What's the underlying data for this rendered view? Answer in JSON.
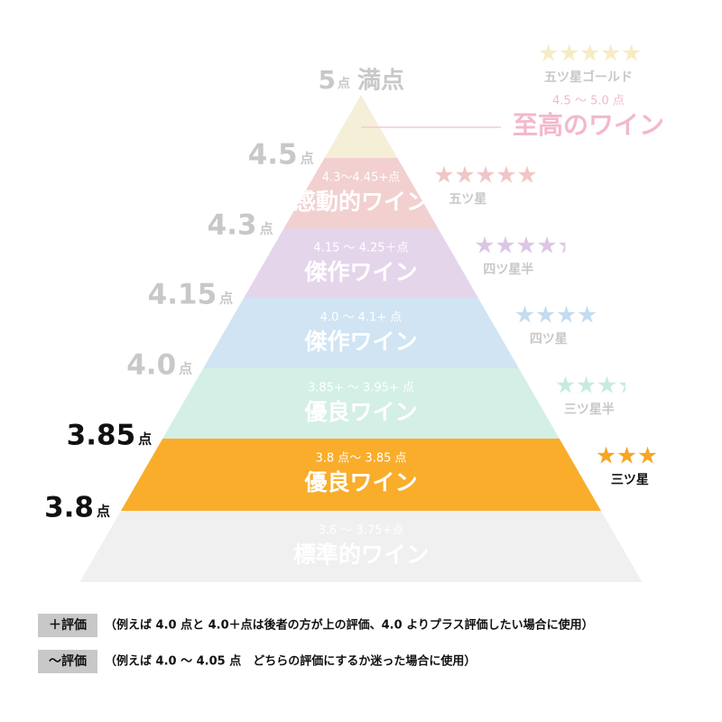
{
  "top": {
    "max_score": "5",
    "max_unit": "点",
    "max_suffix": "満点",
    "stars": 5,
    "star_color": "#f6ecc4",
    "rating": "五ツ星ゴールド",
    "range": "4.5 〜 5.0 点",
    "name": "至高のワイン",
    "color": "#f6efd8"
  },
  "tiers": [
    {
      "range": "4.3〜4.45+点",
      "name": "感動的ワイン",
      "color": "#f2d0d0",
      "stars": 5,
      "star_color": "#f0c6c6",
      "rating": "五ツ星"
    },
    {
      "range": "4.15 〜 4.25＋点",
      "name": "傑作ワイン",
      "color": "#e5d5eb",
      "stars": 4.5,
      "star_color": "#dcc6e6",
      "rating": "四ツ星半"
    },
    {
      "range": "4.0 〜 4.1+ 点",
      "name": "傑作ワイン",
      "color": "#d0e4f3",
      "stars": 4,
      "star_color": "#c4dcf0",
      "rating": "四ツ星"
    },
    {
      "range": "3.85+ 〜 3.95+ 点",
      "name": "優良ワイン",
      "color": "#d4efe6",
      "stars": 3.5,
      "star_color": "#c8ebdf",
      "rating": "三ツ星半"
    },
    {
      "range": "3.8 点〜 3.85 点",
      "name": "優良ワイン",
      "color": "#f9ad2a",
      "stars": 3,
      "star_color": "#f5a623",
      "rating": "三ツ星"
    },
    {
      "range": "3.6 〜 3.75+点",
      "name": "標準的ワイン",
      "color": "#f0f0f0"
    }
  ],
  "scores": [
    {
      "value": "4.5",
      "unit": "点",
      "color": "#c8c8c8"
    },
    {
      "value": "4.3",
      "unit": "点",
      "color": "#c8c8c8"
    },
    {
      "value": "4.15",
      "unit": "点",
      "color": "#c8c8c8"
    },
    {
      "value": "4.0",
      "unit": "点",
      "color": "#c8c8c8"
    },
    {
      "value": "3.85",
      "unit": "点",
      "color": "#111111"
    },
    {
      "value": "3.8",
      "unit": "点",
      "color": "#111111"
    }
  ],
  "legend": [
    {
      "label": "＋評価",
      "text": "（例えば 4.0 点と 4.0＋点は後者の方が上の評価、4.0 よりプラス評価したい場合に使用）"
    },
    {
      "label": "〜評価",
      "text": "（例えば 4.0 〜 4.05 点　どちらの評価にするか迷った場合に使用）"
    }
  ]
}
